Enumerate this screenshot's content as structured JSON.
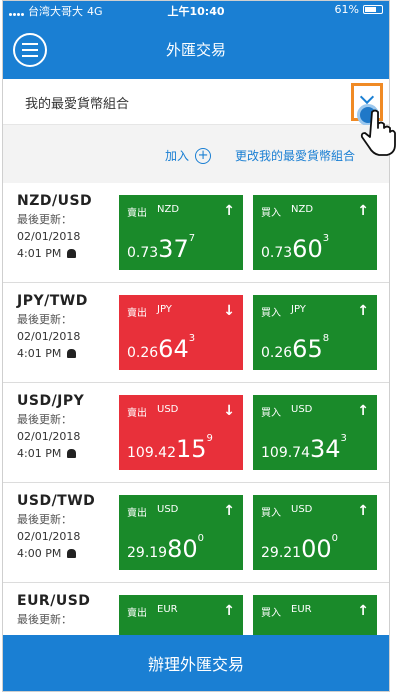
{
  "status_bar": {
    "carrier": "台湾大哥大",
    "network": "4G",
    "time": "上午10:40",
    "battery": "61%"
  },
  "header": {
    "title": "外匯交易"
  },
  "combo": {
    "label": "我的最愛貨幣組合"
  },
  "actions": {
    "add_label": "加入",
    "plus": "+",
    "change_label": "更改我的最愛貨幣組合"
  },
  "labels": {
    "last_update": "最後更新："
  },
  "pairs": [
    {
      "name": "NZD/USD",
      "date": "02/01/2018",
      "time": "4:01 PM",
      "sell": {
        "label": "賣出",
        "currency": "NZD",
        "arrow": "↑",
        "color": "green",
        "prefix": "0.73",
        "big": "37",
        "sup": "7"
      },
      "buy": {
        "label": "買入",
        "currency": "NZD",
        "arrow": "↑",
        "color": "green",
        "prefix": "0.73",
        "big": "60",
        "sup": "3"
      }
    },
    {
      "name": "JPY/TWD",
      "date": "02/01/2018",
      "time": "4:01 PM",
      "sell": {
        "label": "賣出",
        "currency": "JPY",
        "arrow": "↓",
        "color": "red",
        "prefix": "0.26",
        "big": "64",
        "sup": "3"
      },
      "buy": {
        "label": "買入",
        "currency": "JPY",
        "arrow": "↑",
        "color": "green",
        "prefix": "0.26",
        "big": "65",
        "sup": "8"
      }
    },
    {
      "name": "USD/JPY",
      "date": "02/01/2018",
      "time": "4:01 PM",
      "sell": {
        "label": "賣出",
        "currency": "USD",
        "arrow": "↓",
        "color": "red",
        "prefix": "109.42",
        "big": "15",
        "sup": "9"
      },
      "buy": {
        "label": "買入",
        "currency": "USD",
        "arrow": "↑",
        "color": "green",
        "prefix": "109.74",
        "big": "34",
        "sup": "3"
      }
    },
    {
      "name": "USD/TWD",
      "date": "02/01/2018",
      "time": "4:00 PM",
      "sell": {
        "label": "賣出",
        "currency": "USD",
        "arrow": "↑",
        "color": "green",
        "prefix": "29.19",
        "big": "80",
        "sup": "0"
      },
      "buy": {
        "label": "買入",
        "currency": "USD",
        "arrow": "↑",
        "color": "green",
        "prefix": "29.21",
        "big": "00",
        "sup": "0"
      }
    },
    {
      "name": "EUR/USD",
      "date": "",
      "time": "",
      "sell": {
        "label": "賣出",
        "currency": "EUR",
        "arrow": "↑",
        "color": "green",
        "prefix": "",
        "big": "",
        "sup": ""
      },
      "buy": {
        "label": "買入",
        "currency": "EUR",
        "arrow": "↑",
        "color": "green",
        "prefix": "",
        "big": "",
        "sup": ""
      }
    }
  ],
  "bottom": {
    "button_label": "辦理外匯交易"
  }
}
